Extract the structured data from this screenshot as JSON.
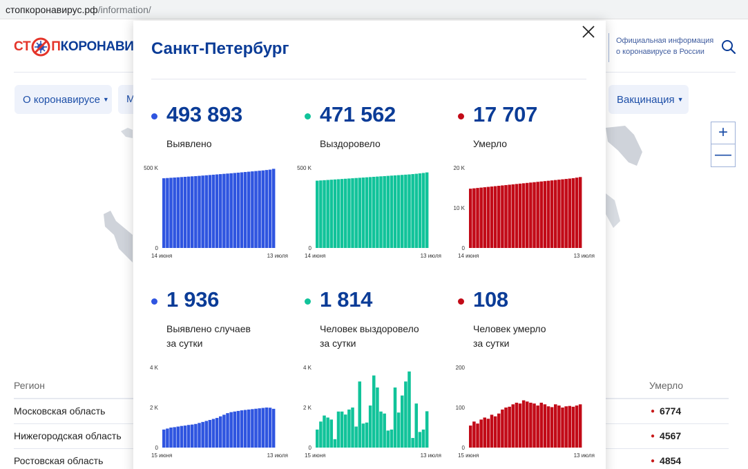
{
  "browser": {
    "url_host": "стопкоронавирус.рф",
    "url_path": "/information/"
  },
  "header": {
    "logo": {
      "part1": "СТ",
      "part2": "П",
      "part3": "КОРОНАВИ"
    },
    "official_line1": "Официальная информация",
    "official_line2": "о коронавирусе в России",
    "nav": [
      {
        "label": "О коронавирусе"
      },
      {
        "label": "М"
      },
      {
        "label": "Вакцинация"
      }
    ]
  },
  "map": {
    "zoom_in": "+",
    "zoom_out": "—"
  },
  "table": {
    "col_region": "Регион",
    "col_died": "Умерло",
    "rows": [
      {
        "region": "Московская область",
        "died": "6774"
      },
      {
        "region": "Нижегородская область",
        "died": "4567"
      },
      {
        "region": "Ростовская область",
        "died": "4854"
      }
    ]
  },
  "modal": {
    "title": "Санкт-Петербург",
    "stats": [
      {
        "value": "493 893",
        "label_line1": "Выявлено",
        "label_line2": "",
        "color": "#2f55e0"
      },
      {
        "value": "471 562",
        "label_line1": "Выздоровело",
        "label_line2": "",
        "color": "#11c39a"
      },
      {
        "value": "17 707",
        "label_line1": "Умерло",
        "label_line2": "",
        "color": "#c20a17"
      },
      {
        "value": "1 936",
        "label_line1": "Выявлено случаев",
        "label_line2": "за сутки",
        "color": "#2f55e0"
      },
      {
        "value": "1 814",
        "label_line1": "Человек выздоровело",
        "label_line2": "за сутки",
        "color": "#11c39a"
      },
      {
        "value": "108",
        "label_line1": "Человек умерло",
        "label_line2": "за сутки",
        "color": "#c20a17"
      }
    ]
  },
  "chart_data": [
    {
      "type": "bar",
      "name": "Выявлено (всего)",
      "color": "#2f55e0",
      "ylim": [
        0,
        500000
      ],
      "yticks": [
        "0",
        "500 K"
      ],
      "ytick_values": [
        0,
        500000
      ],
      "xstart": "14 июня",
      "xend": "13 июля",
      "values": [
        435000,
        436500,
        438000,
        439500,
        441000,
        442500,
        444000,
        445500,
        447000,
        448500,
        450000,
        451800,
        453600,
        455400,
        457200,
        459000,
        460800,
        462600,
        464400,
        466200,
        468000,
        470000,
        472000,
        474000,
        476000,
        478000,
        480000,
        482000,
        484000,
        486500,
        489000,
        493893
      ]
    },
    {
      "type": "bar",
      "name": "Выздоровело (всего)",
      "color": "#11c39a",
      "ylim": [
        0,
        500000
      ],
      "yticks": [
        "0",
        "500 K"
      ],
      "ytick_values": [
        0,
        500000
      ],
      "xstart": "14 июня",
      "xend": "13 июля",
      "values": [
        420000,
        421500,
        423000,
        424500,
        426000,
        427500,
        429000,
        430500,
        432000,
        433500,
        435000,
        436500,
        438000,
        439500,
        441000,
        442500,
        444000,
        445500,
        447000,
        448500,
        450000,
        451500,
        453000,
        454500,
        456000,
        457500,
        459000,
        461000,
        463000,
        465500,
        468000,
        471562
      ]
    },
    {
      "type": "bar",
      "name": "Умерло (всего)",
      "color": "#c20a17",
      "ylim": [
        0,
        20000
      ],
      "yticks": [
        "0",
        "10 K",
        "20 K"
      ],
      "ytick_values": [
        0,
        10000,
        20000
      ],
      "xstart": "14 июня",
      "xend": "13 июля",
      "values": [
        14800,
        14890,
        14980,
        15070,
        15160,
        15250,
        15340,
        15430,
        15520,
        15610,
        15700,
        15790,
        15880,
        15970,
        16060,
        16150,
        16240,
        16330,
        16420,
        16510,
        16600,
        16690,
        16780,
        16870,
        16960,
        17050,
        17140,
        17230,
        17320,
        17420,
        17560,
        17707
      ]
    },
    {
      "type": "bar",
      "name": "Выявлено случаев за сутки",
      "color": "#2f55e0",
      "ylim": [
        0,
        4000
      ],
      "yticks": [
        "0",
        "2 K",
        "4 K"
      ],
      "ytick_values": [
        0,
        2000,
        4000
      ],
      "xstart": "15 июня",
      "xend": "13 июля",
      "values": [
        900,
        950,
        1000,
        1020,
        1050,
        1080,
        1100,
        1130,
        1150,
        1180,
        1230,
        1280,
        1330,
        1380,
        1430,
        1480,
        1560,
        1640,
        1720,
        1770,
        1800,
        1830,
        1860,
        1880,
        1900,
        1920,
        1940,
        1960,
        1980,
        2000,
        1990,
        1936
      ]
    },
    {
      "type": "bar",
      "name": "Человек выздоровело за сутки",
      "color": "#11c39a",
      "ylim": [
        0,
        4000
      ],
      "yticks": [
        "0",
        "2 K",
        "4 K"
      ],
      "ytick_values": [
        0,
        2000,
        4000
      ],
      "xstart": "15 июня",
      "xend": "13 июля",
      "values": [
        900,
        1300,
        1600,
        1500,
        1400,
        420,
        1800,
        1800,
        1650,
        1900,
        2000,
        1050,
        3300,
        1200,
        1250,
        2100,
        3600,
        3000,
        1800,
        1700,
        850,
        900,
        3000,
        1750,
        2600,
        3300,
        3800,
        480,
        2200,
        780,
        900,
        1814
      ]
    },
    {
      "type": "bar",
      "name": "Человек умерло за сутки",
      "color": "#c20a17",
      "ylim": [
        0,
        200
      ],
      "yticks": [
        "0",
        "100",
        "200"
      ],
      "ytick_values": [
        0,
        100,
        200
      ],
      "xstart": "15 июня",
      "xend": "13 июля",
      "values": [
        55,
        65,
        60,
        70,
        75,
        72,
        82,
        78,
        85,
        95,
        100,
        102,
        108,
        112,
        110,
        118,
        115,
        112,
        110,
        105,
        112,
        108,
        103,
        101,
        108,
        105,
        100,
        103,
        104,
        102,
        105,
        108
      ]
    }
  ]
}
